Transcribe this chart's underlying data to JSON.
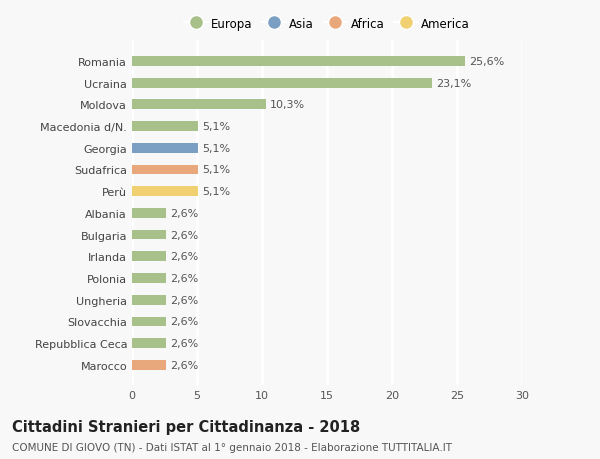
{
  "categories": [
    "Romania",
    "Ucraina",
    "Moldova",
    "Macedonia d/N.",
    "Georgia",
    "Sudafrica",
    "Perù",
    "Albania",
    "Bulgaria",
    "Irlanda",
    "Polonia",
    "Ungheria",
    "Slovacchia",
    "Repubblica Ceca",
    "Marocco"
  ],
  "values": [
    25.6,
    23.1,
    10.3,
    5.1,
    5.1,
    5.1,
    5.1,
    2.6,
    2.6,
    2.6,
    2.6,
    2.6,
    2.6,
    2.6,
    2.6
  ],
  "labels": [
    "25,6%",
    "23,1%",
    "10,3%",
    "5,1%",
    "5,1%",
    "5,1%",
    "5,1%",
    "2,6%",
    "2,6%",
    "2,6%",
    "2,6%",
    "2,6%",
    "2,6%",
    "2,6%",
    "2,6%"
  ],
  "continent": [
    "Europa",
    "Europa",
    "Europa",
    "Europa",
    "Asia",
    "Africa",
    "America",
    "Europa",
    "Europa",
    "Europa",
    "Europa",
    "Europa",
    "Europa",
    "Europa",
    "Africa"
  ],
  "colors": {
    "Europa": "#a8c08a",
    "Asia": "#7a9fc2",
    "Africa": "#e8a87c",
    "America": "#f0d070"
  },
  "xlim": [
    0,
    30
  ],
  "xticks": [
    0,
    5,
    10,
    15,
    20,
    25,
    30
  ],
  "title": "Cittadini Stranieri per Cittadinanza - 2018",
  "subtitle": "COMUNE DI GIOVO (TN) - Dati ISTAT al 1° gennaio 2018 - Elaborazione TUTTITALIA.IT",
  "background_color": "#f8f8f8",
  "grid_color": "#ffffff",
  "bar_height": 0.45,
  "label_fontsize": 8,
  "tick_fontsize": 8,
  "title_fontsize": 10.5,
  "subtitle_fontsize": 7.5,
  "legend_labels": [
    "Europa",
    "Asia",
    "Africa",
    "America"
  ]
}
